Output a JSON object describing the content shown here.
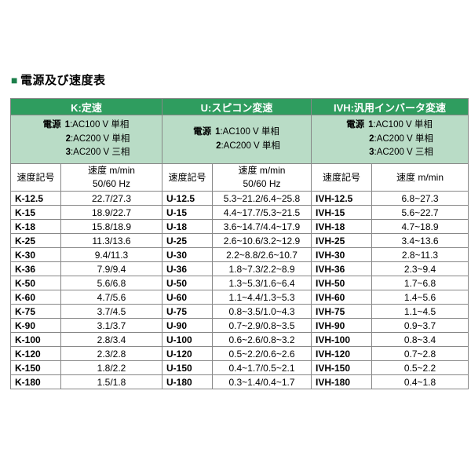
{
  "colors": {
    "header_green": "#2f9d5f",
    "subheader_green": "#b9dcc6",
    "border_gray": "#878787",
    "title_bullet_green": "#1c7f4b"
  },
  "page": {
    "bullet": "■",
    "title": "電源及び速度表"
  },
  "table": {
    "groups": [
      {
        "name": "K",
        "header": "K:定速",
        "power": {
          "label": "電源",
          "lines": [
            {
              "n": "1",
              "t": ":AC100 V 単相"
            },
            {
              "n": "2",
              "t": ":AC200 V 単相"
            },
            {
              "n": "3",
              "t": ":AC200 V 三相"
            }
          ]
        },
        "code_header": "速度記号",
        "speed_header_lines": [
          "速度 m/min",
          "50/60 Hz"
        ]
      },
      {
        "name": "U",
        "header": "U:スピコン変速",
        "power": {
          "label": "電源",
          "lines": [
            {
              "n": "1",
              "t": ":AC100 V 単相"
            },
            {
              "n": "2",
              "t": ":AC200 V 単相"
            }
          ]
        },
        "code_header": "速度記号",
        "speed_header_lines": [
          "速度 m/min",
          "50/60 Hz"
        ]
      },
      {
        "name": "IVH",
        "header": "IVH:汎用インバータ変速",
        "power": {
          "label": "電源",
          "lines": [
            {
              "n": "1",
              "t": ":AC100 V 単相"
            },
            {
              "n": "2",
              "t": ":AC200 V 単相"
            },
            {
              "n": "3",
              "t": ":AC200 V 三相"
            }
          ]
        },
        "code_header": "速度記号",
        "speed_header_lines": [
          "速度 m/min"
        ]
      }
    ],
    "rows": [
      {
        "k_code": "K-12.5",
        "k_value": "22.7/27.3",
        "u_code": "U-12.5",
        "u_value": "5.3~21.2/6.4~25.8",
        "ivh_code": "IVH-12.5",
        "ivh_value": "6.8~27.3"
      },
      {
        "k_code": "K-15",
        "k_value": "18.9/22.7",
        "u_code": "U-15",
        "u_value": "4.4~17.7/5.3~21.5",
        "ivh_code": "IVH-15",
        "ivh_value": "5.6~22.7"
      },
      {
        "k_code": "K-18",
        "k_value": "15.8/18.9",
        "u_code": "U-18",
        "u_value": "3.6~14.7/4.4~17.9",
        "ivh_code": "IVH-18",
        "ivh_value": "4.7~18.9"
      },
      {
        "k_code": "K-25",
        "k_value": "11.3/13.6",
        "u_code": "U-25",
        "u_value": "2.6~10.6/3.2~12.9",
        "ivh_code": "IVH-25",
        "ivh_value": "3.4~13.6"
      },
      {
        "k_code": "K-30",
        "k_value": "9.4/11.3",
        "u_code": "U-30",
        "u_value": "2.2~8.8/2.6~10.7",
        "ivh_code": "IVH-30",
        "ivh_value": "2.8~11.3"
      },
      {
        "k_code": "K-36",
        "k_value": "7.9/9.4",
        "u_code": "U-36",
        "u_value": "1.8~7.3/2.2~8.9",
        "ivh_code": "IVH-36",
        "ivh_value": "2.3~9.4"
      },
      {
        "k_code": "K-50",
        "k_value": "5.6/6.8",
        "u_code": "U-50",
        "u_value": "1.3~5.3/1.6~6.4",
        "ivh_code": "IVH-50",
        "ivh_value": "1.7~6.8"
      },
      {
        "k_code": "K-60",
        "k_value": "4.7/5.6",
        "u_code": "U-60",
        "u_value": "1.1~4.4/1.3~5.3",
        "ivh_code": "IVH-60",
        "ivh_value": "1.4~5.6"
      },
      {
        "k_code": "K-75",
        "k_value": "3.7/4.5",
        "u_code": "U-75",
        "u_value": "0.8~3.5/1.0~4.3",
        "ivh_code": "IVH-75",
        "ivh_value": "1.1~4.5"
      },
      {
        "k_code": "K-90",
        "k_value": "3.1/3.7",
        "u_code": "U-90",
        "u_value": "0.7~2.9/0.8~3.5",
        "ivh_code": "IVH-90",
        "ivh_value": "0.9~3.7"
      },
      {
        "k_code": "K-100",
        "k_value": "2.8/3.4",
        "u_code": "U-100",
        "u_value": "0.6~2.6/0.8~3.2",
        "ivh_code": "IVH-100",
        "ivh_value": "0.8~3.4"
      },
      {
        "k_code": "K-120",
        "k_value": "2.3/2.8",
        "u_code": "U-120",
        "u_value": "0.5~2.2/0.6~2.6",
        "ivh_code": "IVH-120",
        "ivh_value": "0.7~2.8"
      },
      {
        "k_code": "K-150",
        "k_value": "1.8/2.2",
        "u_code": "U-150",
        "u_value": "0.4~1.7/0.5~2.1",
        "ivh_code": "IVH-150",
        "ivh_value": "0.5~2.2"
      },
      {
        "k_code": "K-180",
        "k_value": "1.5/1.8",
        "u_code": "U-180",
        "u_value": "0.3~1.4/0.4~1.7",
        "ivh_code": "IVH-180",
        "ivh_value": "0.4~1.8"
      }
    ]
  }
}
